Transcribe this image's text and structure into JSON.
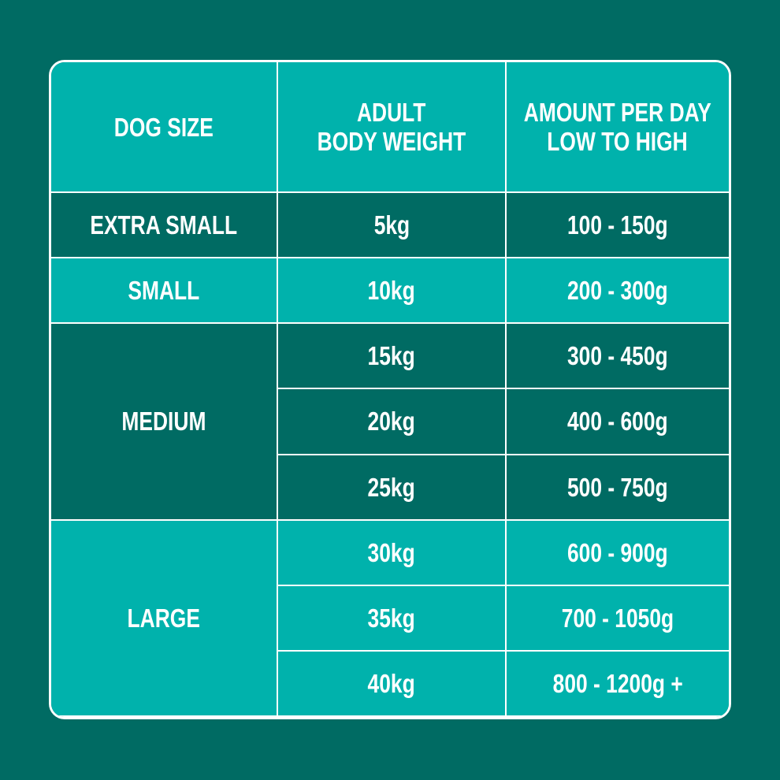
{
  "table": {
    "header": [
      [
        "DOG SIZE"
      ],
      [
        "ADULT",
        "BODY WEIGHT"
      ],
      [
        "AMOUNT PER DAY",
        "LOW TO HIGH"
      ]
    ],
    "groups": [
      {
        "size": "EXTRA SMALL",
        "rows": [
          [
            "5kg",
            "100 - 150g"
          ]
        ]
      },
      {
        "size": "SMALL",
        "rows": [
          [
            "10kg",
            "200 - 300g"
          ]
        ]
      },
      {
        "size": "MEDIUM",
        "rows": [
          [
            "15kg",
            "300 - 450g"
          ],
          [
            "20kg",
            "400 - 600g"
          ],
          [
            "25kg",
            "500 - 750g"
          ]
        ]
      },
      {
        "size": "LARGE",
        "rows": [
          [
            "30kg",
            "600 - 900g"
          ],
          [
            "35kg",
            "700 - 1050g"
          ],
          [
            "40kg",
            "800 - 1200g +"
          ]
        ]
      }
    ]
  }
}
